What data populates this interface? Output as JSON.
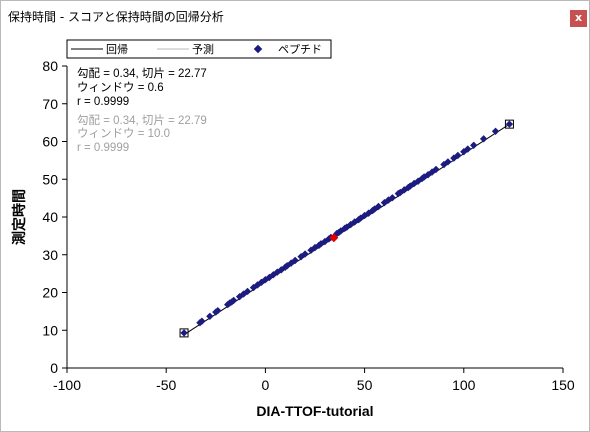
{
  "window": {
    "title": "保持時間 - スコアと保持時間の回帰分析",
    "close_label": "x"
  },
  "legend": {
    "regression": "回帰",
    "predicted": "予測",
    "peptides": "ペプチド"
  },
  "stats": {
    "regression": {
      "slope_intercept": "勾配 = 0.34, 切片 = 22.77",
      "window": "ウィンドウ = 0.6",
      "r": "r = 0.9999"
    },
    "predicted": {
      "slope_intercept": "勾配 = 0.34, 切片 = 22.79",
      "window": "ウィンドウ = 10.0",
      "r": "r = 0.9999"
    }
  },
  "colors": {
    "point": "#1c1c80",
    "selected": "#e00000",
    "predicted_text": "#a0a0a0",
    "close_button": "#c75050"
  },
  "chart_data": {
    "type": "scatter",
    "xlabel": "DIA-TTOF-tutorial",
    "ylabel": "測定時間",
    "xlim": [
      -100,
      150
    ],
    "ylim": [
      0,
      80
    ],
    "xticks": [
      -100,
      -50,
      0,
      50,
      100,
      150
    ],
    "yticks": [
      0,
      10,
      20,
      30,
      40,
      50,
      60,
      70,
      80
    ],
    "grid": false,
    "legend_position": "top",
    "regression_line": {
      "slope": 0.34,
      "intercept": 22.77,
      "x_range": [
        -41,
        123
      ]
    },
    "selected_point": {
      "x": 34.5,
      "y": 34.5
    },
    "boxed_points": [
      {
        "x": -41,
        "y": 9.3
      },
      {
        "x": 123,
        "y": 64.6
      }
    ],
    "points": [
      {
        "x": -41,
        "y": 9.3
      },
      {
        "x": -33,
        "y": 12.0
      },
      {
        "x": -32,
        "y": 12.4
      },
      {
        "x": -28,
        "y": 13.7
      },
      {
        "x": -25,
        "y": 14.8
      },
      {
        "x": -24,
        "y": 15.2
      },
      {
        "x": -19,
        "y": 16.8
      },
      {
        "x": -18,
        "y": 17.2
      },
      {
        "x": -17,
        "y": 17.5
      },
      {
        "x": -16,
        "y": 17.9
      },
      {
        "x": -13,
        "y": 18.9
      },
      {
        "x": -11,
        "y": 19.6
      },
      {
        "x": -9,
        "y": 20.3
      },
      {
        "x": -6,
        "y": 21.3
      },
      {
        "x": -4,
        "y": 22.0
      },
      {
        "x": -2,
        "y": 22.7
      },
      {
        "x": 0,
        "y": 23.4
      },
      {
        "x": 2,
        "y": 24.0
      },
      {
        "x": 4,
        "y": 24.7
      },
      {
        "x": 6,
        "y": 25.4
      },
      {
        "x": 8,
        "y": 26.0
      },
      {
        "x": 10,
        "y": 26.7
      },
      {
        "x": 11,
        "y": 27.1
      },
      {
        "x": 13,
        "y": 27.8
      },
      {
        "x": 15,
        "y": 28.5
      },
      {
        "x": 18,
        "y": 29.5
      },
      {
        "x": 20,
        "y": 30.2
      },
      {
        "x": 23,
        "y": 31.2
      },
      {
        "x": 25,
        "y": 31.9
      },
      {
        "x": 27,
        "y": 32.5
      },
      {
        "x": 28,
        "y": 32.9
      },
      {
        "x": 30,
        "y": 33.5
      },
      {
        "x": 32,
        "y": 34.2
      },
      {
        "x": 33,
        "y": 34.6
      },
      {
        "x": 36,
        "y": 35.6
      },
      {
        "x": 37,
        "y": 35.9
      },
      {
        "x": 38,
        "y": 36.3
      },
      {
        "x": 40,
        "y": 37.0
      },
      {
        "x": 41,
        "y": 37.3
      },
      {
        "x": 43,
        "y": 38.0
      },
      {
        "x": 45,
        "y": 38.7
      },
      {
        "x": 47,
        "y": 39.3
      },
      {
        "x": 48,
        "y": 39.7
      },
      {
        "x": 50,
        "y": 40.4
      },
      {
        "x": 52,
        "y": 41.0
      },
      {
        "x": 54,
        "y": 41.7
      },
      {
        "x": 55,
        "y": 42.1
      },
      {
        "x": 57,
        "y": 42.8
      },
      {
        "x": 60,
        "y": 43.8
      },
      {
        "x": 62,
        "y": 44.5
      },
      {
        "x": 64,
        "y": 45.1
      },
      {
        "x": 67,
        "y": 46.2
      },
      {
        "x": 68,
        "y": 46.5
      },
      {
        "x": 70,
        "y": 47.2
      },
      {
        "x": 72,
        "y": 47.8
      },
      {
        "x": 73,
        "y": 48.2
      },
      {
        "x": 75,
        "y": 48.9
      },
      {
        "x": 77,
        "y": 49.5
      },
      {
        "x": 79,
        "y": 50.2
      },
      {
        "x": 80,
        "y": 50.6
      },
      {
        "x": 82,
        "y": 51.2
      },
      {
        "x": 84,
        "y": 51.9
      },
      {
        "x": 86,
        "y": 52.6
      },
      {
        "x": 90,
        "y": 53.9
      },
      {
        "x": 92,
        "y": 54.6
      },
      {
        "x": 95,
        "y": 55.6
      },
      {
        "x": 97,
        "y": 56.3
      },
      {
        "x": 100,
        "y": 57.3
      },
      {
        "x": 102,
        "y": 58.0
      },
      {
        "x": 105,
        "y": 59.0
      },
      {
        "x": 110,
        "y": 60.7
      },
      {
        "x": 116,
        "y": 62.7
      },
      {
        "x": 123,
        "y": 64.6
      }
    ]
  }
}
